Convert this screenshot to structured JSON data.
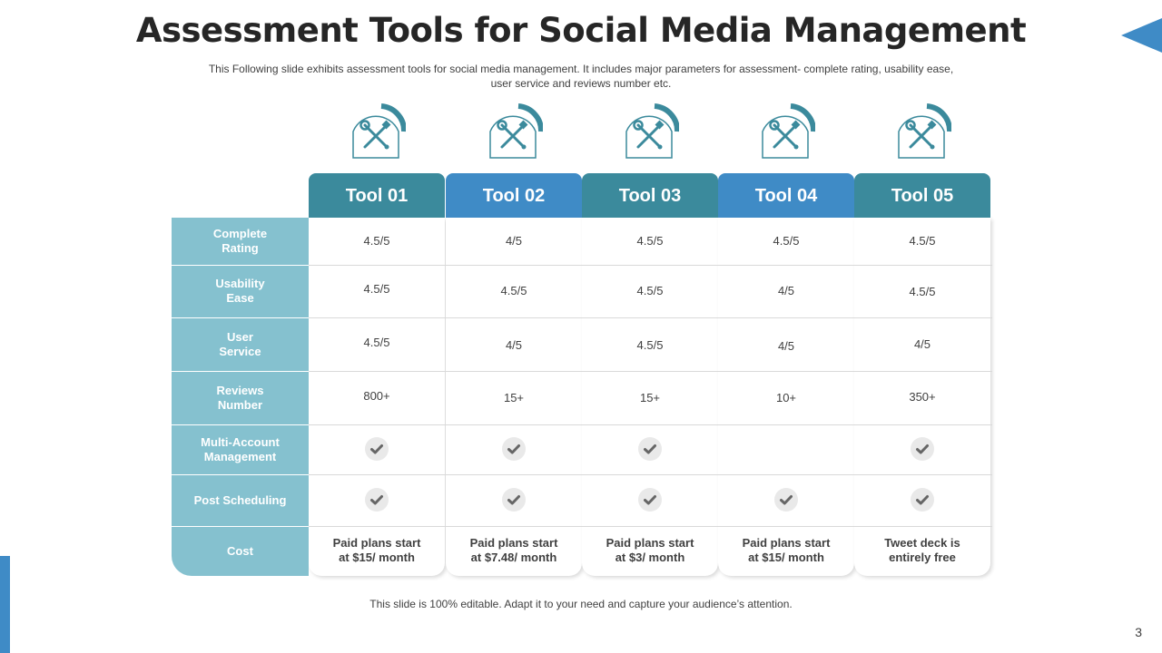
{
  "slide": {
    "title": "Assessment Tools for Social Media Management",
    "subtitle": "This Following slide exhibits assessment tools for social media management. It includes major parameters for assessment- complete rating, usability ease, user service and reviews number etc.",
    "footer": "This slide is 100% editable. Adapt it to your need and capture your audience’s attention.",
    "page_number": "3"
  },
  "colors": {
    "header_teal": "#3b8a9c",
    "header_blue": "#3f8bc6",
    "label_column": "#85c1cf",
    "check_mark": "#666666"
  },
  "table": {
    "tools": [
      "Tool 01",
      "Tool 02",
      "Tool 03",
      "Tool 04",
      "Tool 05"
    ],
    "row_labels": [
      "Complete\nRating",
      "Usability\nEase",
      "User\nService",
      "Reviews\nNumber",
      "Multi-Account\nManagement",
      "Post Scheduling",
      "Cost"
    ],
    "rows": {
      "complete_rating": [
        "4.5/5",
        "4/5",
        "4.5/5",
        "4.5/5",
        "4.5/5"
      ],
      "usability_ease": [
        "4.5/5",
        "4.5/5",
        "4.5/5",
        "4/5",
        "4.5/5"
      ],
      "user_service": [
        "4.5/5",
        "4/5",
        "4.5/5",
        "4/5",
        "4/5"
      ],
      "reviews_number": [
        "800+",
        "15+",
        "15+",
        "10+",
        "350+"
      ],
      "multi_account_management": [
        true,
        true,
        true,
        false,
        true
      ],
      "post_scheduling": [
        true,
        true,
        true,
        true,
        true
      ],
      "cost": [
        "Paid plans start\nat $15/ month",
        "Paid plans start\nat $7.48/ month",
        "Paid plans start\nat $3/ month",
        "Paid plans start\nat $15/ month",
        "Tweet deck is\nentirely free"
      ]
    }
  },
  "icons": [
    "tools-icon",
    "tools-icon",
    "tools-icon",
    "tools-icon",
    "tools-icon"
  ]
}
